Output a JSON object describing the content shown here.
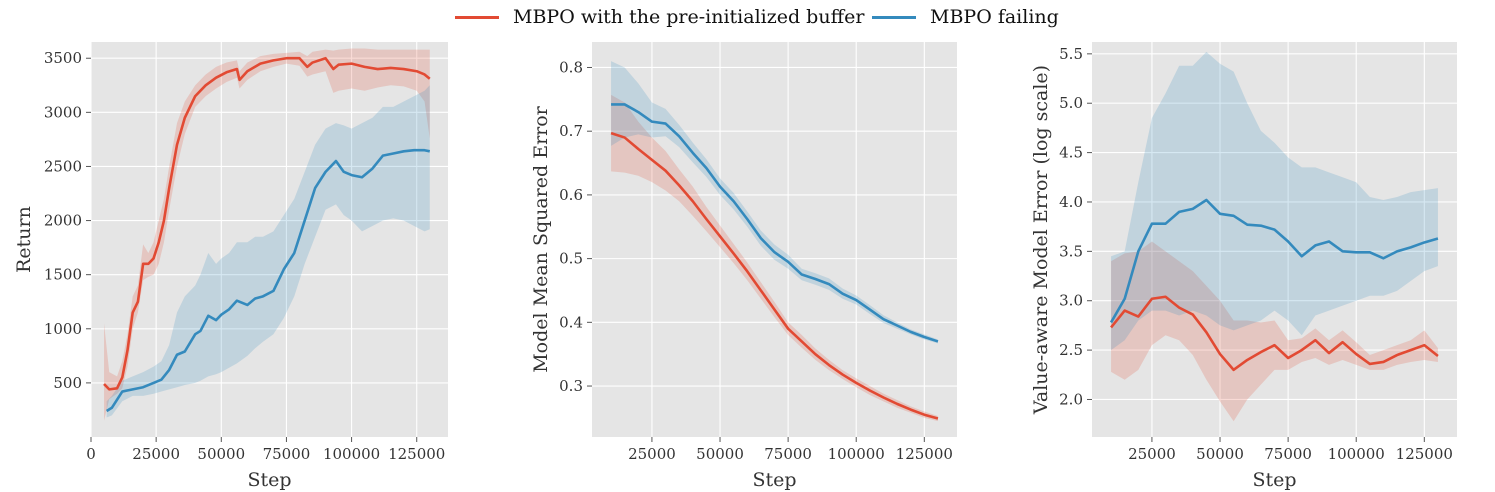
{
  "colors": {
    "red": "#e24a33",
    "blue": "#348abd",
    "panel_bg": "#e5e5e5",
    "grid": "#ffffff"
  },
  "legend": [
    {
      "name": "MBPO with the pre-initialized buffer",
      "color": "#e24a33"
    },
    {
      "name": "MBPO failing",
      "color": "#348abd"
    }
  ],
  "chart_data": [
    {
      "type": "line",
      "title": "",
      "xlabel": "Step",
      "ylabel": "Return",
      "xlim": [
        0,
        137000
      ],
      "ylim": [
        0,
        3650
      ],
      "xticks": [
        0,
        25000,
        50000,
        75000,
        100000,
        125000
      ],
      "yticks": [
        500,
        1000,
        1500,
        2000,
        2500,
        3000,
        3500
      ],
      "series": [
        {
          "name": "MBPO with the pre-initialized buffer",
          "color": "#e24a33",
          "x": [
            5000,
            7000,
            10000,
            12000,
            14000,
            16000,
            18000,
            20000,
            22000,
            24000,
            26000,
            28000,
            30000,
            33000,
            36000,
            40000,
            44000,
            48000,
            52000,
            56000,
            57000,
            60000,
            65000,
            70000,
            75000,
            80000,
            83000,
            85000,
            90000,
            93000,
            95000,
            100000,
            105000,
            110000,
            115000,
            120000,
            125000,
            128000,
            130000
          ],
          "y": [
            490,
            440,
            450,
            550,
            800,
            1150,
            1250,
            1600,
            1600,
            1650,
            1800,
            2000,
            2300,
            2700,
            2950,
            3150,
            3250,
            3320,
            3370,
            3400,
            3300,
            3380,
            3450,
            3480,
            3500,
            3500,
            3420,
            3460,
            3500,
            3400,
            3440,
            3450,
            3420,
            3400,
            3410,
            3400,
            3380,
            3350,
            3310
          ],
          "lower": [
            150,
            350,
            400,
            450,
            650,
            1000,
            1150,
            1450,
            1480,
            1500,
            1600,
            1800,
            2100,
            2500,
            2800,
            3050,
            3150,
            3220,
            3280,
            3320,
            3220,
            3300,
            3380,
            3420,
            3450,
            3430,
            3330,
            3350,
            3380,
            3180,
            3200,
            3220,
            3200,
            3230,
            3250,
            3240,
            3200,
            3100,
            2760
          ],
          "upper": [
            1050,
            600,
            560,
            700,
            950,
            1300,
            1400,
            1780,
            1700,
            1800,
            2000,
            2200,
            2500,
            2900,
            3100,
            3250,
            3350,
            3420,
            3460,
            3480,
            3380,
            3460,
            3520,
            3540,
            3550,
            3560,
            3520,
            3560,
            3580,
            3570,
            3580,
            3590,
            3590,
            3580,
            3580,
            3580,
            3580,
            3580,
            3580
          ]
        },
        {
          "name": "MBPO failing",
          "color": "#348abd",
          "x": [
            6000,
            8000,
            12000,
            16000,
            20000,
            24000,
            27000,
            30000,
            33000,
            36000,
            40000,
            42000,
            45000,
            48000,
            50000,
            53000,
            56000,
            60000,
            63000,
            66000,
            70000,
            74000,
            78000,
            82000,
            86000,
            90000,
            94000,
            97000,
            100000,
            104000,
            108000,
            112000,
            116000,
            120000,
            124000,
            128000,
            130000
          ],
          "y": [
            240,
            270,
            420,
            440,
            460,
            500,
            530,
            620,
            760,
            790,
            950,
            980,
            1120,
            1080,
            1130,
            1180,
            1260,
            1220,
            1280,
            1300,
            1350,
            1550,
            1700,
            2000,
            2300,
            2450,
            2550,
            2450,
            2420,
            2400,
            2480,
            2600,
            2620,
            2640,
            2650,
            2650,
            2640
          ],
          "lower": [
            180,
            200,
            330,
            380,
            380,
            400,
            420,
            440,
            460,
            480,
            500,
            520,
            560,
            580,
            600,
            640,
            680,
            750,
            820,
            880,
            950,
            1100,
            1300,
            1600,
            1850,
            2100,
            2150,
            2050,
            2000,
            1900,
            1950,
            2000,
            2020,
            2000,
            1950,
            1900,
            1920
          ],
          "upper": [
            330,
            380,
            520,
            560,
            600,
            650,
            700,
            850,
            1150,
            1300,
            1400,
            1500,
            1700,
            1600,
            1650,
            1700,
            1800,
            1800,
            1850,
            1850,
            1900,
            2050,
            2200,
            2450,
            2700,
            2850,
            2900,
            2880,
            2850,
            2900,
            2950,
            3050,
            3050,
            3100,
            3150,
            3200,
            3250
          ]
        }
      ]
    },
    {
      "type": "line",
      "title": "",
      "xlabel": "Step",
      "ylabel": "Model Mean Squared Error",
      "xlim": [
        3000,
        137000
      ],
      "ylim": [
        0.22,
        0.84
      ],
      "xticks": [
        25000,
        50000,
        75000,
        100000,
        125000
      ],
      "yticks": [
        0.3,
        0.4,
        0.5,
        0.6,
        0.7,
        0.8
      ],
      "series": [
        {
          "name": "MBPO with the pre-initialized buffer",
          "color": "#e24a33",
          "x": [
            10000,
            15000,
            20000,
            25000,
            30000,
            35000,
            40000,
            45000,
            50000,
            55000,
            60000,
            65000,
            70000,
            75000,
            80000,
            85000,
            90000,
            95000,
            100000,
            105000,
            110000,
            115000,
            120000,
            125000,
            130000
          ],
          "y": [
            0.697,
            0.69,
            0.672,
            0.655,
            0.638,
            0.615,
            0.59,
            0.562,
            0.535,
            0.508,
            0.48,
            0.45,
            0.42,
            0.39,
            0.37,
            0.35,
            0.333,
            0.318,
            0.305,
            0.293,
            0.282,
            0.272,
            0.263,
            0.255,
            0.249
          ],
          "lower": [
            0.637,
            0.635,
            0.63,
            0.62,
            0.607,
            0.59,
            0.567,
            0.543,
            0.518,
            0.493,
            0.466,
            0.437,
            0.408,
            0.38,
            0.36,
            0.341,
            0.325,
            0.311,
            0.298,
            0.286,
            0.276,
            0.266,
            0.258,
            0.25,
            0.245
          ],
          "upper": [
            0.757,
            0.745,
            0.715,
            0.69,
            0.669,
            0.64,
            0.613,
            0.581,
            0.552,
            0.523,
            0.494,
            0.463,
            0.432,
            0.4,
            0.38,
            0.359,
            0.341,
            0.325,
            0.312,
            0.3,
            0.288,
            0.278,
            0.268,
            0.26,
            0.253
          ]
        },
        {
          "name": "MBPO failing",
          "color": "#348abd",
          "x": [
            10000,
            15000,
            20000,
            25000,
            30000,
            35000,
            40000,
            45000,
            50000,
            55000,
            60000,
            65000,
            70000,
            75000,
            80000,
            85000,
            90000,
            95000,
            100000,
            105000,
            110000,
            115000,
            120000,
            125000,
            130000
          ],
          "y": [
            0.742,
            0.742,
            0.73,
            0.715,
            0.712,
            0.692,
            0.666,
            0.642,
            0.613,
            0.59,
            0.562,
            0.532,
            0.51,
            0.495,
            0.475,
            0.468,
            0.46,
            0.445,
            0.435,
            0.42,
            0.405,
            0.395,
            0.385,
            0.377,
            0.37
          ],
          "lower": [
            0.677,
            0.69,
            0.695,
            0.69,
            0.692,
            0.675,
            0.651,
            0.628,
            0.6,
            0.577,
            0.55,
            0.52,
            0.498,
            0.484,
            0.466,
            0.459,
            0.451,
            0.437,
            0.428,
            0.413,
            0.399,
            0.39,
            0.381,
            0.373,
            0.367
          ],
          "upper": [
            0.81,
            0.8,
            0.775,
            0.745,
            0.735,
            0.71,
            0.682,
            0.656,
            0.626,
            0.603,
            0.574,
            0.544,
            0.522,
            0.506,
            0.484,
            0.477,
            0.469,
            0.453,
            0.442,
            0.427,
            0.411,
            0.4,
            0.389,
            0.381,
            0.373
          ]
        }
      ]
    },
    {
      "type": "line",
      "title": "",
      "xlabel": "Step",
      "ylabel": "Value-aware Model Error (log scale)",
      "xlim": [
        3000,
        137000
      ],
      "ylim": [
        1.62,
        5.62
      ],
      "xticks": [
        25000,
        50000,
        75000,
        100000,
        125000
      ],
      "yticks": [
        2.0,
        2.5,
        3.0,
        3.5,
        4.0,
        4.5,
        5.0,
        5.5
      ],
      "series": [
        {
          "name": "MBPO with the pre-initialized buffer",
          "color": "#e24a33",
          "x": [
            10000,
            15000,
            20000,
            25000,
            30000,
            35000,
            40000,
            45000,
            50000,
            55000,
            60000,
            65000,
            70000,
            75000,
            80000,
            85000,
            90000,
            95000,
            100000,
            105000,
            110000,
            115000,
            120000,
            125000,
            130000
          ],
          "y": [
            2.73,
            2.9,
            2.84,
            3.02,
            3.04,
            2.93,
            2.86,
            2.68,
            2.46,
            2.3,
            2.4,
            2.48,
            2.55,
            2.42,
            2.5,
            2.6,
            2.47,
            2.58,
            2.46,
            2.36,
            2.38,
            2.45,
            2.5,
            2.55,
            2.44
          ],
          "lower": [
            2.28,
            2.2,
            2.3,
            2.55,
            2.65,
            2.6,
            2.45,
            2.2,
            1.98,
            1.78,
            2.0,
            2.15,
            2.3,
            2.3,
            2.38,
            2.42,
            2.35,
            2.4,
            2.35,
            2.3,
            2.3,
            2.35,
            2.38,
            2.4,
            2.38
          ],
          "upper": [
            3.4,
            3.48,
            3.5,
            3.6,
            3.5,
            3.4,
            3.3,
            3.15,
            3.0,
            2.8,
            2.8,
            2.78,
            2.8,
            2.6,
            2.62,
            2.72,
            2.6,
            2.7,
            2.58,
            2.45,
            2.5,
            2.55,
            2.6,
            2.7,
            2.52
          ]
        },
        {
          "name": "MBPO failing",
          "color": "#348abd",
          "x": [
            10000,
            15000,
            20000,
            25000,
            30000,
            35000,
            40000,
            45000,
            50000,
            55000,
            60000,
            65000,
            70000,
            75000,
            80000,
            85000,
            90000,
            95000,
            100000,
            105000,
            110000,
            115000,
            120000,
            125000,
            130000
          ],
          "y": [
            2.78,
            3.02,
            3.5,
            3.78,
            3.78,
            3.9,
            3.93,
            4.02,
            3.88,
            3.86,
            3.77,
            3.76,
            3.72,
            3.6,
            3.45,
            3.56,
            3.6,
            3.5,
            3.49,
            3.49,
            3.43,
            3.5,
            3.54,
            3.59,
            3.63
          ],
          "lower": [
            2.5,
            2.6,
            2.8,
            2.9,
            2.9,
            2.85,
            2.9,
            2.85,
            2.75,
            2.7,
            2.75,
            2.8,
            2.9,
            2.8,
            2.65,
            2.85,
            2.9,
            2.95,
            3.0,
            3.05,
            3.05,
            3.1,
            3.2,
            3.3,
            3.35
          ],
          "upper": [
            3.45,
            3.5,
            4.2,
            4.85,
            5.1,
            5.38,
            5.38,
            5.52,
            5.4,
            5.32,
            5.0,
            4.72,
            4.6,
            4.45,
            4.35,
            4.35,
            4.3,
            4.25,
            4.2,
            4.05,
            4.02,
            4.05,
            4.1,
            4.12,
            4.14
          ]
        }
      ]
    }
  ]
}
